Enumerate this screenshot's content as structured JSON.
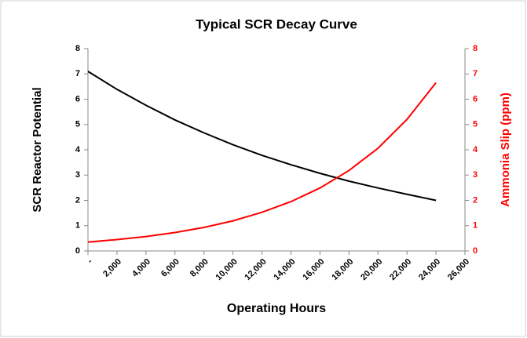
{
  "chart_data": {
    "type": "line",
    "title": "Typical SCR Decay Curve",
    "x_label": "Operating Hours",
    "y_label": "SCR Reactor Potential",
    "y2_label": "Ammonia Slip (ppm)",
    "x": [
      0,
      2000,
      4000,
      6000,
      8000,
      10000,
      12000,
      14000,
      16000,
      18000,
      20000,
      22000,
      24000
    ],
    "series": [
      {
        "name": "SCR Reactor Potential",
        "color": "#000000",
        "values": [
          7.1,
          6.39,
          5.76,
          5.18,
          4.67,
          4.2,
          3.78,
          3.41,
          3.07,
          2.76,
          2.49,
          2.24,
          2.0
        ]
      },
      {
        "name": "Ammonia Slip (ppm)",
        "color": "#ff0000",
        "axis": "y2",
        "values": [
          0.35,
          0.45,
          0.57,
          0.73,
          0.93,
          1.19,
          1.53,
          1.95,
          2.49,
          3.18,
          4.06,
          5.2,
          6.65
        ]
      }
    ],
    "xlim": [
      0,
      26000
    ],
    "xticks": [
      {
        "value": 0,
        "label": "-"
      },
      {
        "value": 2000,
        "label": "2,000"
      },
      {
        "value": 4000,
        "label": "4,000"
      },
      {
        "value": 6000,
        "label": "6,000"
      },
      {
        "value": 8000,
        "label": "8,000"
      },
      {
        "value": 10000,
        "label": "10,000"
      },
      {
        "value": 12000,
        "label": "12,000"
      },
      {
        "value": 14000,
        "label": "14,000"
      },
      {
        "value": 16000,
        "label": "16,000"
      },
      {
        "value": 18000,
        "label": "18,000"
      },
      {
        "value": 20000,
        "label": "20,000"
      },
      {
        "value": 22000,
        "label": "22,000"
      },
      {
        "value": 24000,
        "label": "24,000"
      },
      {
        "value": 26000,
        "label": "26,000"
      }
    ],
    "ylim": [
      0,
      8
    ],
    "yticks": [
      0,
      1,
      2,
      3,
      4,
      5,
      6,
      7,
      8
    ],
    "y2lim": [
      0,
      8
    ],
    "y2ticks": [
      0,
      1,
      2,
      3,
      4,
      5,
      6,
      7,
      8
    ],
    "y2_color": "#ff0000",
    "grid": false
  }
}
